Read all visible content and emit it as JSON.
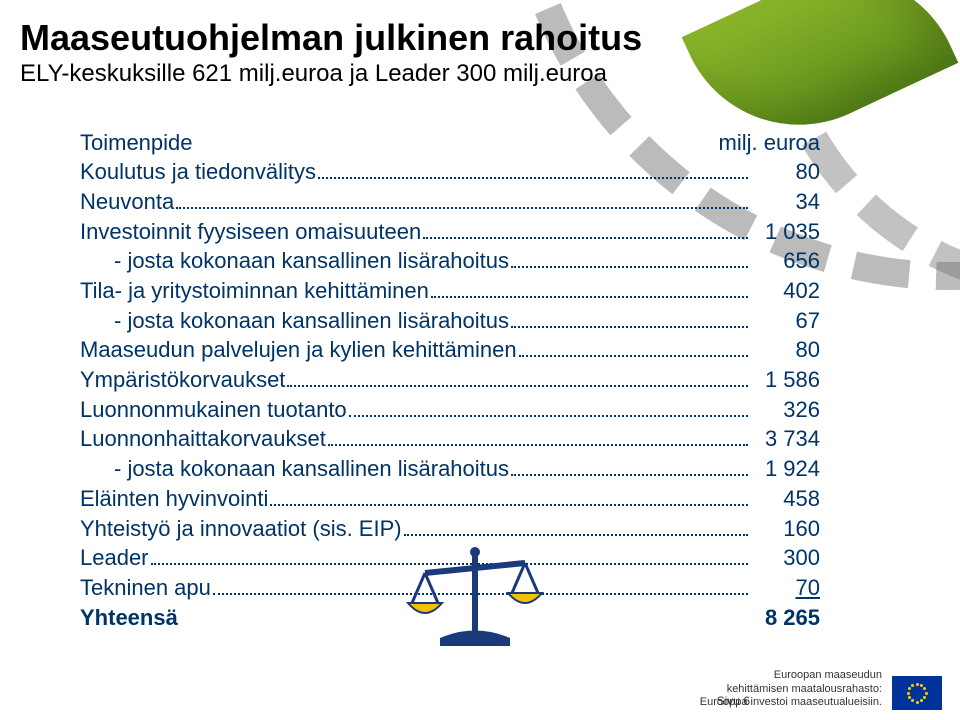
{
  "title": "Maaseutuohjelman julkinen rahoitus",
  "subtitle": "ELY-keskuksille 621 milj.euroa ja Leader 300 milj.euroa",
  "header": {
    "left": "Toimenpide",
    "right": "milj. euroa"
  },
  "rows": [
    {
      "label": "Koulutus ja tiedonvälitys",
      "value": "80",
      "indent": false
    },
    {
      "label": "Neuvonta",
      "value": "34",
      "indent": false
    },
    {
      "label": "Investoinnit fyysiseen omaisuuteen",
      "value": "1 035",
      "indent": false
    },
    {
      "label": "- josta kokonaan kansallinen lisärahoitus",
      "value": "656",
      "indent": true
    },
    {
      "label": "Tila- ja yritystoiminnan kehittäminen",
      "value": "402",
      "indent": false
    },
    {
      "label": "- josta kokonaan kansallinen lisärahoitus",
      "value": "67",
      "indent": true
    },
    {
      "label": "Maaseudun palvelujen ja kylien kehittäminen",
      "value": "80",
      "indent": false
    },
    {
      "label": "Ympäristökorvaukset",
      "value": "1 586",
      "indent": false
    },
    {
      "label": "Luonnonmukainen tuotanto",
      "value": "326",
      "indent": false
    },
    {
      "label": "Luonnonhaittakorvaukset",
      "value": "3 734",
      "indent": false
    },
    {
      "label": "- josta kokonaan kansallinen lisärahoitus",
      "value": "1 924",
      "indent": true
    },
    {
      "label": "Eläinten hyvinvointi",
      "value": "458",
      "indent": false
    },
    {
      "label": "Yhteistyö ja innovaatiot (sis. EIP)",
      "value": "160",
      "indent": false
    },
    {
      "label": "Leader",
      "value": "300",
      "indent": false
    },
    {
      "label": "Tekninen apu",
      "value": "70",
      "indent": false,
      "underlineValue": true
    }
  ],
  "total": {
    "label": "Yhteensä",
    "value": "8 265"
  },
  "footer": {
    "line1": "Euroopan maaseudun",
    "line2": "kehittämisen maatalousrahasto:",
    "line3": "Eurooppa investoi maaseutualueisiin."
  },
  "pageLabel": "Sivu 6",
  "colors": {
    "text_primary": "#003366",
    "title": "#000000",
    "eu_blue": "#003399",
    "eu_gold": "#ffcc00",
    "leaf_light": "#8bb72a",
    "leaf_dark": "#5a8a19",
    "scales_yellow": "#f2c200",
    "scales_blue": "#1a3a7a"
  }
}
